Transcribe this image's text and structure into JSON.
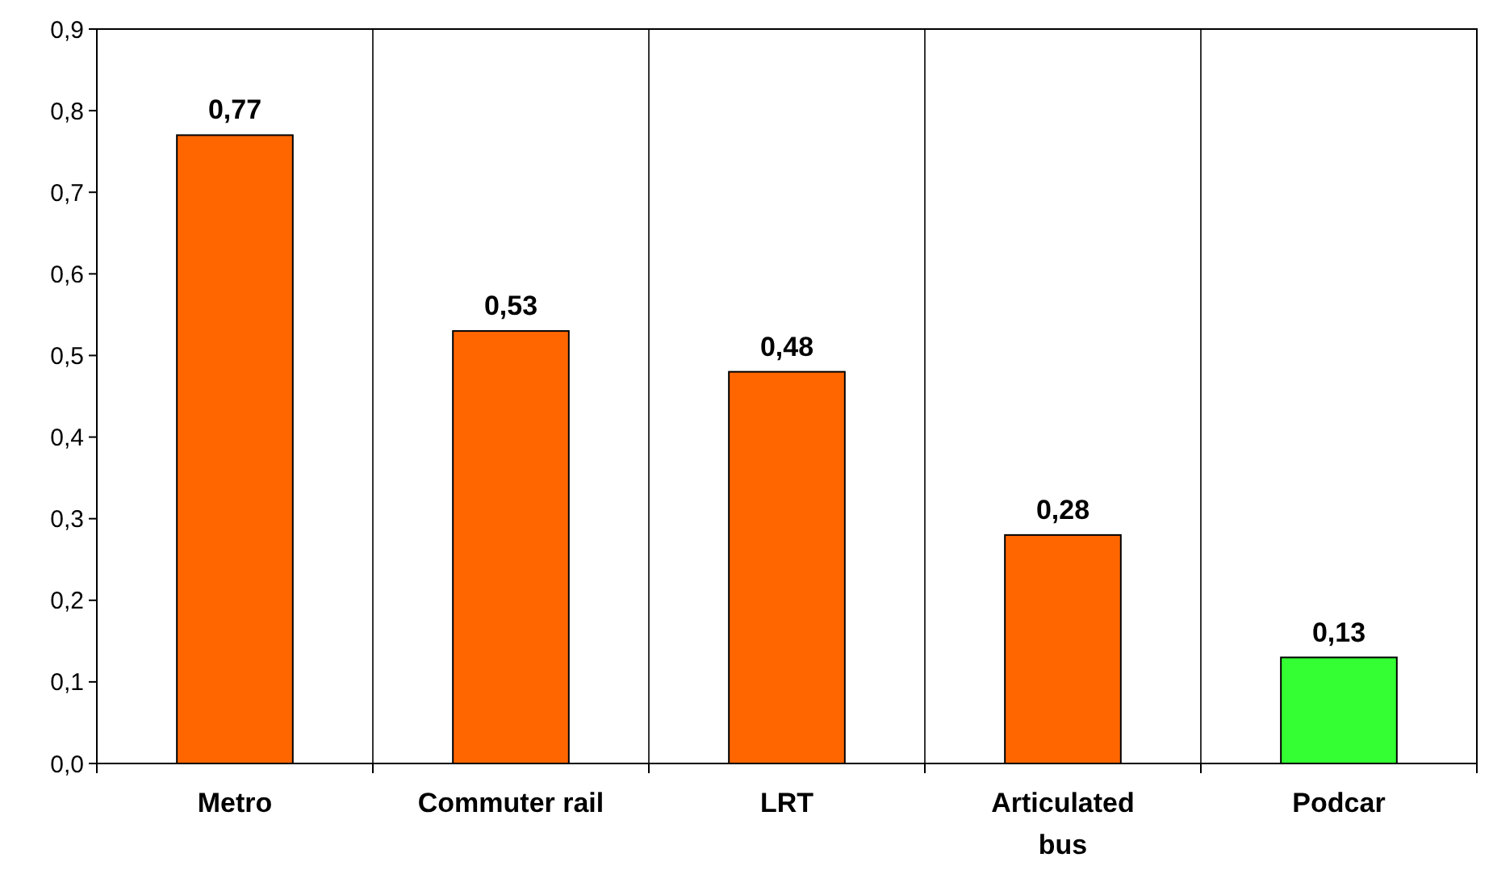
{
  "chart_data": {
    "type": "bar",
    "categories": [
      "Metro",
      "Commuter rail",
      "LRT",
      "Articulated bus",
      "Podcar"
    ],
    "values": [
      0.77,
      0.53,
      0.48,
      0.28,
      0.13
    ],
    "colors": [
      "#ff6600",
      "#ff6600",
      "#ff6600",
      "#ff6600",
      "#33ff33"
    ],
    "value_labels": [
      "0,77",
      "0,53",
      "0,48",
      "0,28",
      "0,13"
    ],
    "ylim": [
      0,
      0.9
    ],
    "yticks": [
      {
        "value": 0,
        "label": "0,0"
      },
      {
        "value": 0.1,
        "label": "0,1"
      },
      {
        "value": 0.2,
        "label": "0,2"
      },
      {
        "value": 0.3,
        "label": "0,3"
      },
      {
        "value": 0.4,
        "label": "0,4"
      },
      {
        "value": 0.5,
        "label": "0,5"
      },
      {
        "value": 0.6,
        "label": "0,6"
      },
      {
        "value": 0.7,
        "label": "0,7"
      },
      {
        "value": 0.8,
        "label": "0,8"
      },
      {
        "value": 0.9,
        "label": "0,9"
      }
    ],
    "grid": "x"
  }
}
